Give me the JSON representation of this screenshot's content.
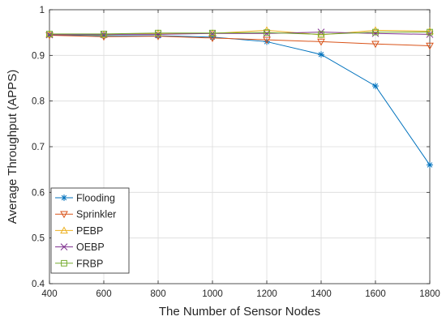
{
  "chart_data": {
    "type": "line",
    "title": "",
    "xlabel": "The Number of Sensor Nodes",
    "ylabel": "Average Throughput (APPS)",
    "x": [
      400,
      600,
      800,
      1000,
      1200,
      1400,
      1600,
      1800
    ],
    "xlim": [
      400,
      1800
    ],
    "ylim": [
      0.4,
      1
    ],
    "xticks": [
      "400",
      "600",
      "800",
      "1000",
      "1200",
      "1400",
      "1600",
      "1800"
    ],
    "yticks": [
      "0.4",
      "0.5",
      "0.6",
      "0.7",
      "0.8",
      "0.9",
      "1"
    ],
    "grid": true,
    "legend_position": "bottom-left",
    "series": [
      {
        "name": "Flooding",
        "marker": "asterisk",
        "color": "#0072BD",
        "values": [
          0.945,
          0.943,
          0.943,
          0.94,
          0.93,
          0.902,
          0.833,
          0.66
        ]
      },
      {
        "name": "Sprinkler",
        "marker": "triangle-down",
        "color": "#D95319",
        "values": [
          0.944,
          0.941,
          0.942,
          0.938,
          0.934,
          0.93,
          0.925,
          0.921
        ]
      },
      {
        "name": "PEBP",
        "marker": "triangle-up",
        "color": "#EDB120",
        "values": [
          0.946,
          0.945,
          0.948,
          0.948,
          0.955,
          0.945,
          0.955,
          0.953
        ]
      },
      {
        "name": "OEBP",
        "marker": "x",
        "color": "#7E2F8E",
        "values": [
          0.945,
          0.946,
          0.946,
          0.948,
          0.948,
          0.951,
          0.948,
          0.946
        ]
      },
      {
        "name": "FRBP",
        "marker": "square",
        "color": "#77AC30",
        "values": [
          0.947,
          0.947,
          0.949,
          0.949,
          0.95,
          0.946,
          0.951,
          0.951
        ]
      }
    ]
  }
}
